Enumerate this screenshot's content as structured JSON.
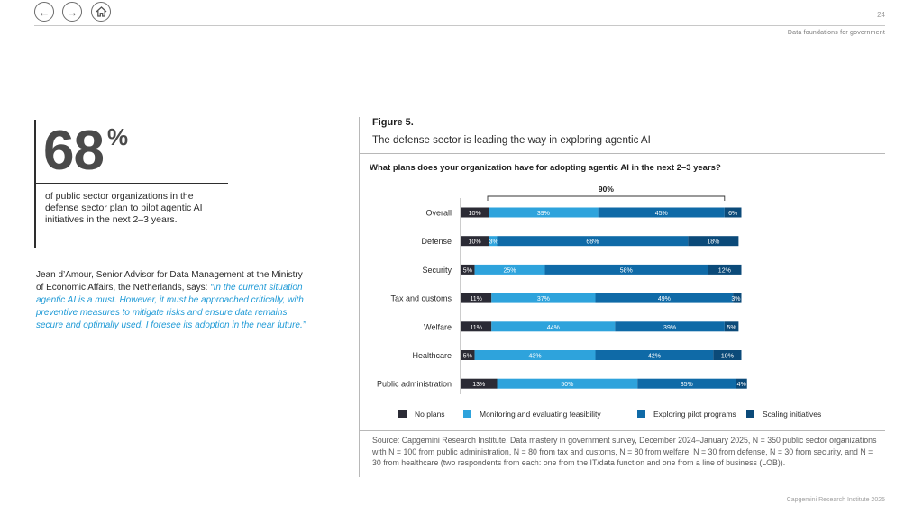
{
  "header": {
    "page_number": "24",
    "section_title": "Data foundations for government"
  },
  "nav": {
    "back_icon": "←",
    "forward_icon": "→"
  },
  "stat": {
    "number": "68",
    "percent_sign": "%",
    "text": "of public sector organizations in the defense sector plan to pilot agentic AI initiatives in the next 2–3 years."
  },
  "quote": {
    "attribution": "Jean d’Amour, Senior Advisor for Data Management at the Ministry of Economic Affairs, the Netherlands, says: ",
    "text": "“In the current situation agentic AI is a must. However, it must be approached critically, with preventive measures to mitigate risks and ensure data remains secure and optimally used. I foresee its adoption in the near future.”"
  },
  "figure": {
    "label": "Figure 5.",
    "title": "The defense sector is leading the way in exploring agentic AI"
  },
  "chart_data": {
    "type": "bar",
    "orientation": "horizontal",
    "stacked": true,
    "title": "What plans does your organization have for adopting agentic AI in the next 2–3 years?",
    "categories": [
      "Overall",
      "Defense",
      "Security",
      "Tax and customs",
      "Welfare",
      "Healthcare",
      "Public administration"
    ],
    "series": [
      {
        "name": "No plans",
        "color": "#2b2b35",
        "values": [
          10,
          10,
          5,
          11,
          11,
          5,
          13
        ]
      },
      {
        "name": "Monitoring and evaluating feasibility",
        "color": "#2ea3dc",
        "values": [
          39,
          3,
          25,
          37,
          44,
          43,
          50
        ]
      },
      {
        "name": "Exploring pilot programs",
        "color": "#0f6aa7",
        "values": [
          45,
          68,
          58,
          49,
          39,
          42,
          35
        ]
      },
      {
        "name": "Scaling initiatives",
        "color": "#0b4a79",
        "values": [
          6,
          18,
          12,
          3,
          5,
          10,
          4
        ]
      }
    ],
    "bracket_label": "90%",
    "legend_position": "bottom"
  },
  "source": "Source: Capgemini Research Institute, Data mastery in government survey, December 2024–January 2025, N = 350 public sector organizations with N = 100 from public administration, N = 80 from tax and customs, N = 80 from welfare, N = 30 from defense, N = 30 from security, and N = 30 from healthcare (two respondents from each: one from the IT/data function and one from a line of business (LOB)).",
  "footer": "Capgemini Research Institute 2025"
}
